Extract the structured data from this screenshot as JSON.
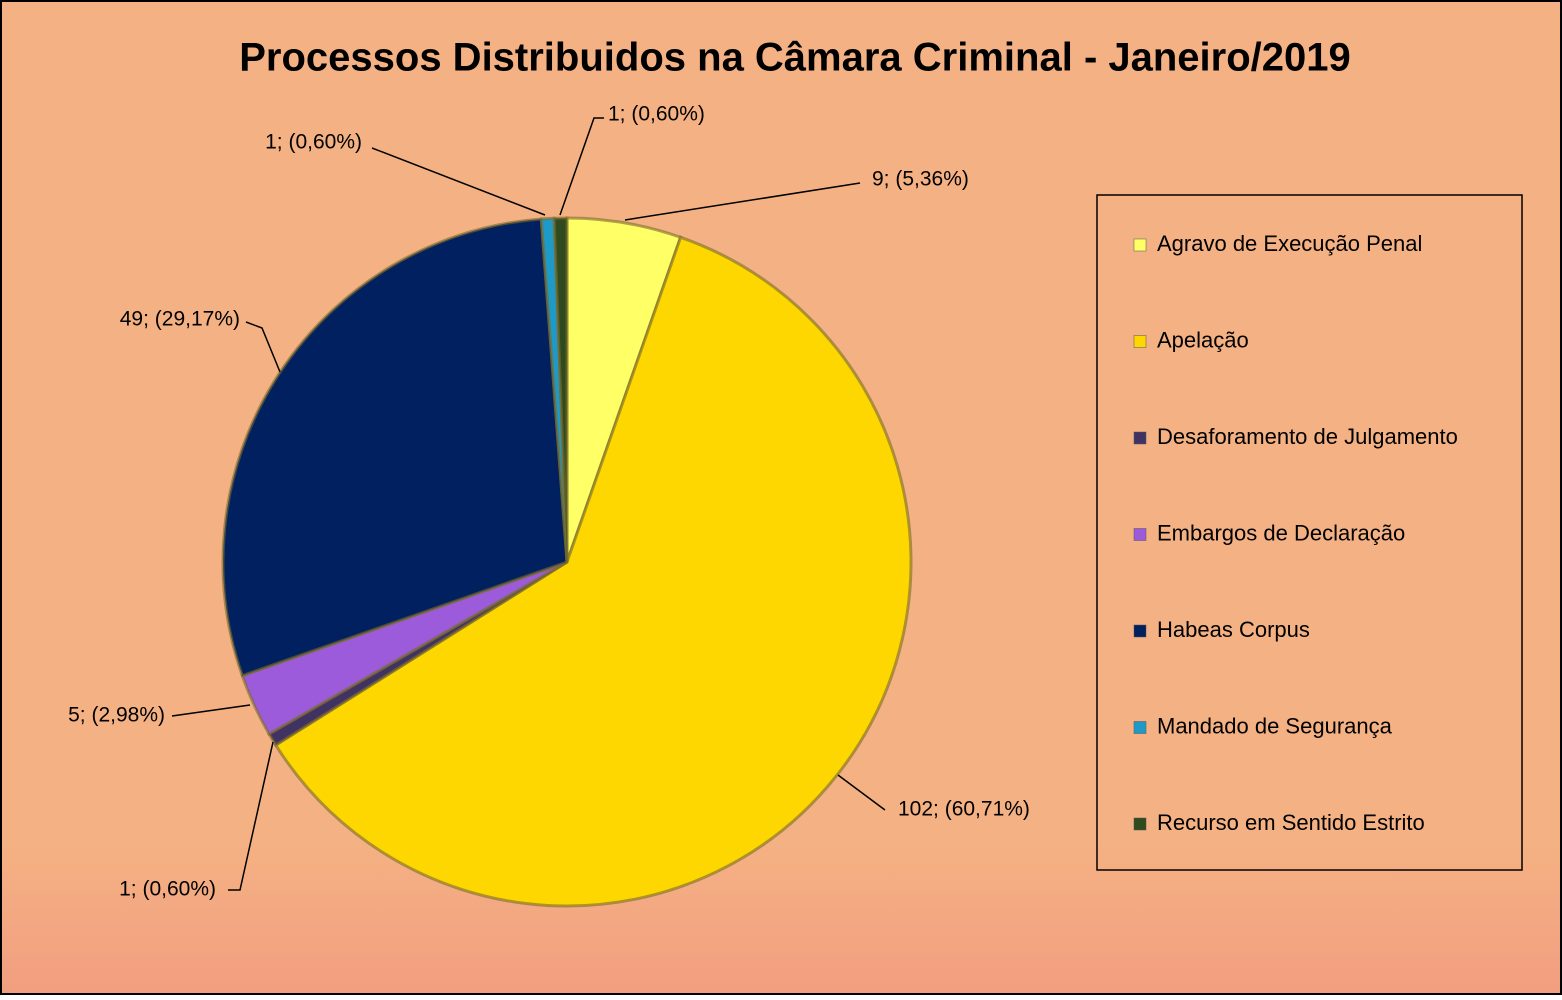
{
  "chart_data": {
    "type": "pie",
    "title": "Processos Distribuidos na Câmara Criminal - Janeiro/2019",
    "categories": [
      "Agravo de Execução Penal",
      "Apelação",
      "Desaforamento de Julgamento",
      "Embargos de Declaração",
      "Habeas Corpus",
      "Mandado de Segurança",
      "Recurso em Sentido Estrito"
    ],
    "values": [
      9,
      102,
      1,
      5,
      49,
      1,
      1
    ],
    "value_labels": [
      "9; (5,36%)",
      "102; (60,71%)",
      "1; (0,60%)",
      "5; (2,98%)",
      "49; (29,17%)",
      "1; (0,60%)",
      "1; (0,60%)"
    ],
    "colors": [
      "#FFFF66",
      "#FFD700",
      "#403263",
      "#9B5BDB",
      "#002060",
      "#1E9AC9",
      "#2F4A1F"
    ],
    "legend": "right"
  }
}
